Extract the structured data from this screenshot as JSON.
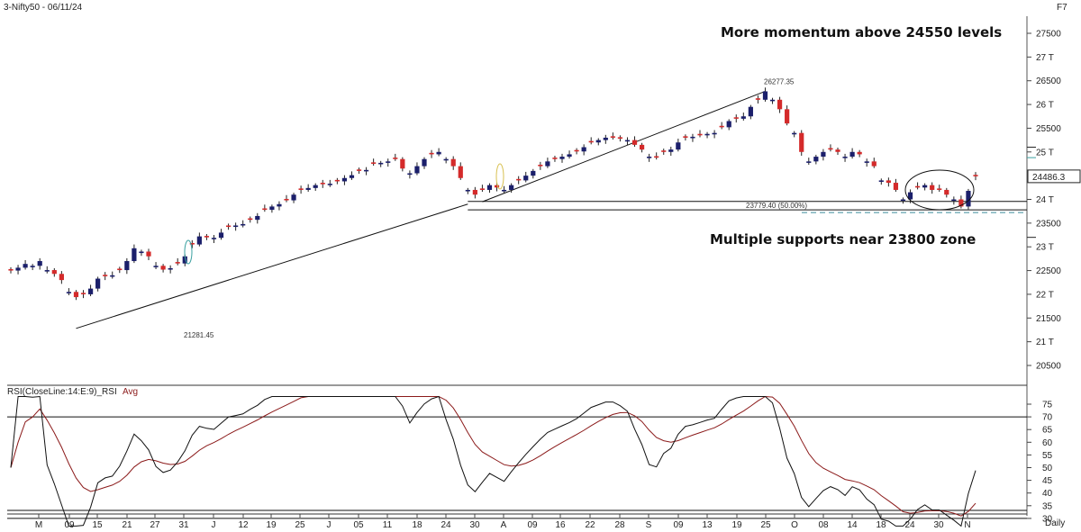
{
  "header": {
    "title": "3-Nifty50 - 06/11/24",
    "corner": "F7"
  },
  "colors": {
    "up": "#1b1f6b",
    "down": "#d42a2a",
    "ma": "#8b1a1a",
    "rsi": "#111111"
  },
  "chart_data": [
    {
      "type": "candlestick",
      "price_axis": {
        "range": [
          20000,
          27800
        ],
        "ticks": [
          "27500",
          "27 T",
          "26500",
          "26 T",
          "25500",
          "25 T",
          "24 T",
          "23500",
          "23 T",
          "22500",
          "22 T",
          "21500",
          "21 T",
          "20500"
        ],
        "tick_values": [
          27500,
          27000,
          26500,
          26000,
          25500,
          25000,
          24000,
          23500,
          23000,
          22500,
          22000,
          21500,
          21000,
          20500
        ],
        "last_price_label": "24486.3",
        "last_price": 24486
      },
      "x_axis": {
        "labels": [
          "M",
          "09",
          "15",
          "21",
          "27",
          "31",
          "J",
          "12",
          "19",
          "25",
          "J",
          "05",
          "11",
          "18",
          "24",
          "30",
          "A",
          "09",
          "16",
          "22",
          "28",
          "S",
          "09",
          "13",
          "19",
          "25",
          "O",
          "08",
          "14",
          "18",
          "24",
          "30",
          "N"
        ],
        "positions": [
          43,
          77,
          108,
          141,
          172,
          204,
          237,
          270,
          301,
          333,
          365,
          398,
          430,
          463,
          495,
          527,
          559,
          591,
          622,
          655,
          688,
          720,
          753,
          785,
          818,
          850,
          882,
          914,
          946,
          978,
          1010,
          1042,
          1074
        ],
        "period_label": "Daily"
      },
      "annotations": {
        "top_text": "More momentum above 24550 levels",
        "bottom_text": "Multiple supports near 23800 zone",
        "high_label": "26277.35",
        "high_value": 26277,
        "low_label": "21281.45",
        "low_value": 21281,
        "fib_label": "23779.40 (50.00%)",
        "fib_value": 23779
      },
      "closes": [
        22500,
        22560,
        22640,
        22600,
        22700,
        22510,
        22430,
        22300,
        22050,
        21940,
        22000,
        22120,
        22330,
        22380,
        22400,
        22510,
        22700,
        22970,
        22900,
        22800,
        22600,
        22520,
        22550,
        22650,
        22800,
        23050,
        23220,
        23200,
        23190,
        23300,
        23420,
        23450,
        23480,
        23570,
        23650,
        23780,
        23850,
        23900,
        23980,
        24100,
        24200,
        24240,
        24300,
        24320,
        24330,
        24380,
        24450,
        24510,
        24600,
        24620,
        24750,
        24770,
        24800,
        24850,
        24650,
        24550,
        24700,
        24850,
        24950,
        25000,
        24850,
        24700,
        24450,
        24200,
        24100,
        24200,
        24300,
        24250,
        24200,
        24300,
        24400,
        24500,
        24600,
        24700,
        24800,
        24850,
        24900,
        24950,
        25010,
        25100,
        25200,
        25250,
        25300,
        25300,
        25280,
        25250,
        25150,
        25050,
        24900,
        24880,
        25000,
        25050,
        25200,
        25300,
        25320,
        25350,
        25380,
        25400,
        25520,
        25650,
        25700,
        25750,
        25950,
        26100,
        26277,
        26100,
        25900,
        25600,
        25400,
        25000,
        24800,
        24900,
        25000,
        25050,
        25000,
        24900,
        25000,
        24950,
        24800,
        24700,
        24400,
        24350,
        24200,
        24000,
        24150,
        24250,
        24300,
        24200,
        24200,
        24100,
        24000,
        23850,
        24180,
        24486
      ],
      "rsi_axis": {
        "ticks": [
          "75",
          "70",
          "65",
          "60",
          "55",
          "50",
          "45",
          "40",
          "35",
          "30"
        ],
        "tick_values": [
          75,
          70,
          65,
          60,
          55,
          50,
          45,
          40,
          35,
          30
        ],
        "range": [
          26,
          78
        ],
        "label": "RSI(CloseLine:14:E:9)_RSI",
        "avg_label": "Avg",
        "levels": [
          70,
          30
        ]
      }
    }
  ]
}
